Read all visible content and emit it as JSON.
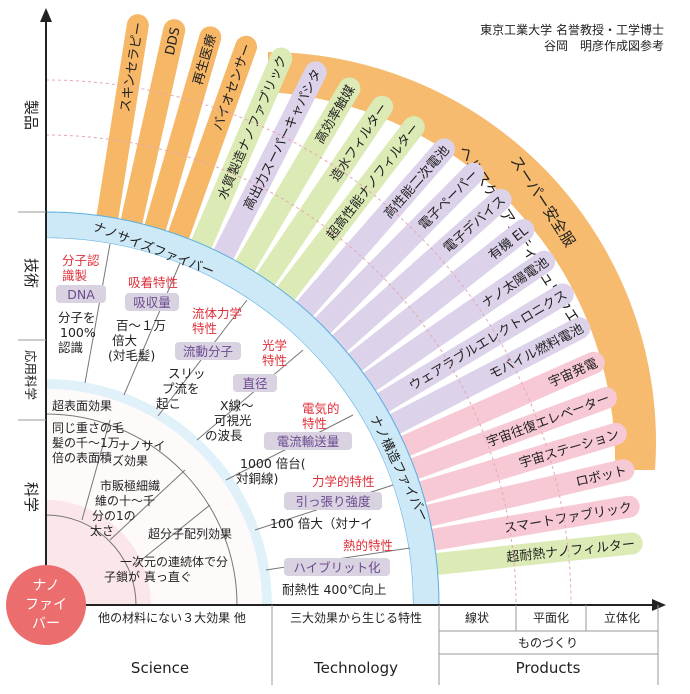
{
  "credit": {
    "line1": "東京工業大学 名誉教授・工学博士",
    "line2": "谷岡　明彦作成図参考"
  },
  "y_axis": {
    "products": "製品",
    "technology": "技術",
    "applied_science": "応用科学",
    "science": "科学"
  },
  "origin": {
    "line1": "ナノ",
    "line2": "ファイ",
    "line3": "バー"
  },
  "colors": {
    "orange": "#f6b766",
    "orange_light": "#fbd3a3",
    "green": "#dcebb6",
    "purple": "#dcd2ea",
    "pink": "#f7c9d4",
    "blue_band": "#cde8f6",
    "blue_edge": "#5aaee0",
    "origin_red": "#ec6d6d",
    "red_text": "#e0303a",
    "purple_text": "#6b4a8f",
    "tag_bg": "#d9d2e0"
  },
  "bands": {
    "nanosize_fiber": "ナノサイズファイバー",
    "nano_structure_fiber": "ナノ構造ファイバー"
  },
  "inner": {
    "surface": "超表面効果",
    "weight": "同じ重さの毛髪の千〜1万倍の表面積",
    "nanosize_effect": "ナノサイズ効果",
    "commercial": "市販極細繊維の十〜千分の1の太さ",
    "molecular_alignment": "超分子配列効果",
    "continuum": "一次元の連続体で分子鎖が 真っ直ぐ並ぶ"
  },
  "middle": {
    "recognition_title": "分子認識製",
    "dna": "DNA",
    "recognition_desc": "分子を100%認識",
    "absorption_title": "吸着特性",
    "absorption_tag": "吸収量",
    "absorption_desc": "百〜１万倍大(対毛髪)",
    "fluid_title": "流体力学特性",
    "fluid_tag": "流動分子",
    "fluid_desc": "スリップ流を起こす",
    "optical_title": "光学特性",
    "optical_tag": "直径",
    "optical_desc": "X線〜可視光の波長域",
    "electrical_title": "電気的特性",
    "electrical_tag": "電流輸送量",
    "electrical_desc": "1000 倍台(対銅線)",
    "mechanical_title": "力学的特性",
    "mechanical_tag": "引っ張り強度",
    "mechanical_desc": "100 倍大（対ナイ",
    "thermal_title": "熱的特性",
    "thermal_tag": "ハイブリット化",
    "thermal_desc": "耐熱性 400℃向上"
  },
  "products": [
    {
      "label": "スキンセラピー",
      "color": "orange"
    },
    {
      "label": "DDS",
      "color": "orange"
    },
    {
      "label": "再生医療",
      "color": "orange"
    },
    {
      "label": "バイオセンサー",
      "color": "orange"
    },
    {
      "label": "水質製造ナノファブリック",
      "color": "green"
    },
    {
      "label": "高出力スーパーキャパシタ",
      "color": "purple"
    },
    {
      "label": "高効率触媒",
      "color": "green"
    },
    {
      "label": "造水フィルター",
      "color": "green"
    },
    {
      "label": "超高性能ナノフィルター",
      "color": "green"
    },
    {
      "label": "高性能二次電池",
      "color": "purple"
    },
    {
      "label": "電子ペーパー",
      "color": "purple"
    },
    {
      "label": "電子デバイス",
      "color": "purple"
    },
    {
      "label": "有機 EL",
      "color": "purple"
    },
    {
      "label": "ナノ太陽電池",
      "color": "purple"
    },
    {
      "label": "ウェアラブルエレクトロニクス",
      "color": "purple"
    },
    {
      "label": "モバイル燃料電池",
      "color": "purple"
    },
    {
      "label": "宇宙発電",
      "color": "pink"
    },
    {
      "label": "宇宙往復エレベーター",
      "color": "pink"
    },
    {
      "label": "宇宙ステーション",
      "color": "pink"
    },
    {
      "label": "ロボット",
      "color": "pink"
    },
    {
      "label": "スマートファブリック",
      "color": "pink"
    },
    {
      "label": "超耐熱ナノフィルター",
      "color": "green"
    }
  ],
  "super_arc": {
    "line1": "スーパー安全服",
    "line2": "ヘルスケアアスティミュウウエア"
  },
  "x_axis": {
    "science_desc": "他の材料にない３大効果 他",
    "technology_desc": "三大効果から生じる特性",
    "linear": "線状",
    "planar": "平面化",
    "three_d": "立体化",
    "monozukuri": "ものづくり",
    "science": "Science",
    "technology": "Technology",
    "products": "Products"
  }
}
